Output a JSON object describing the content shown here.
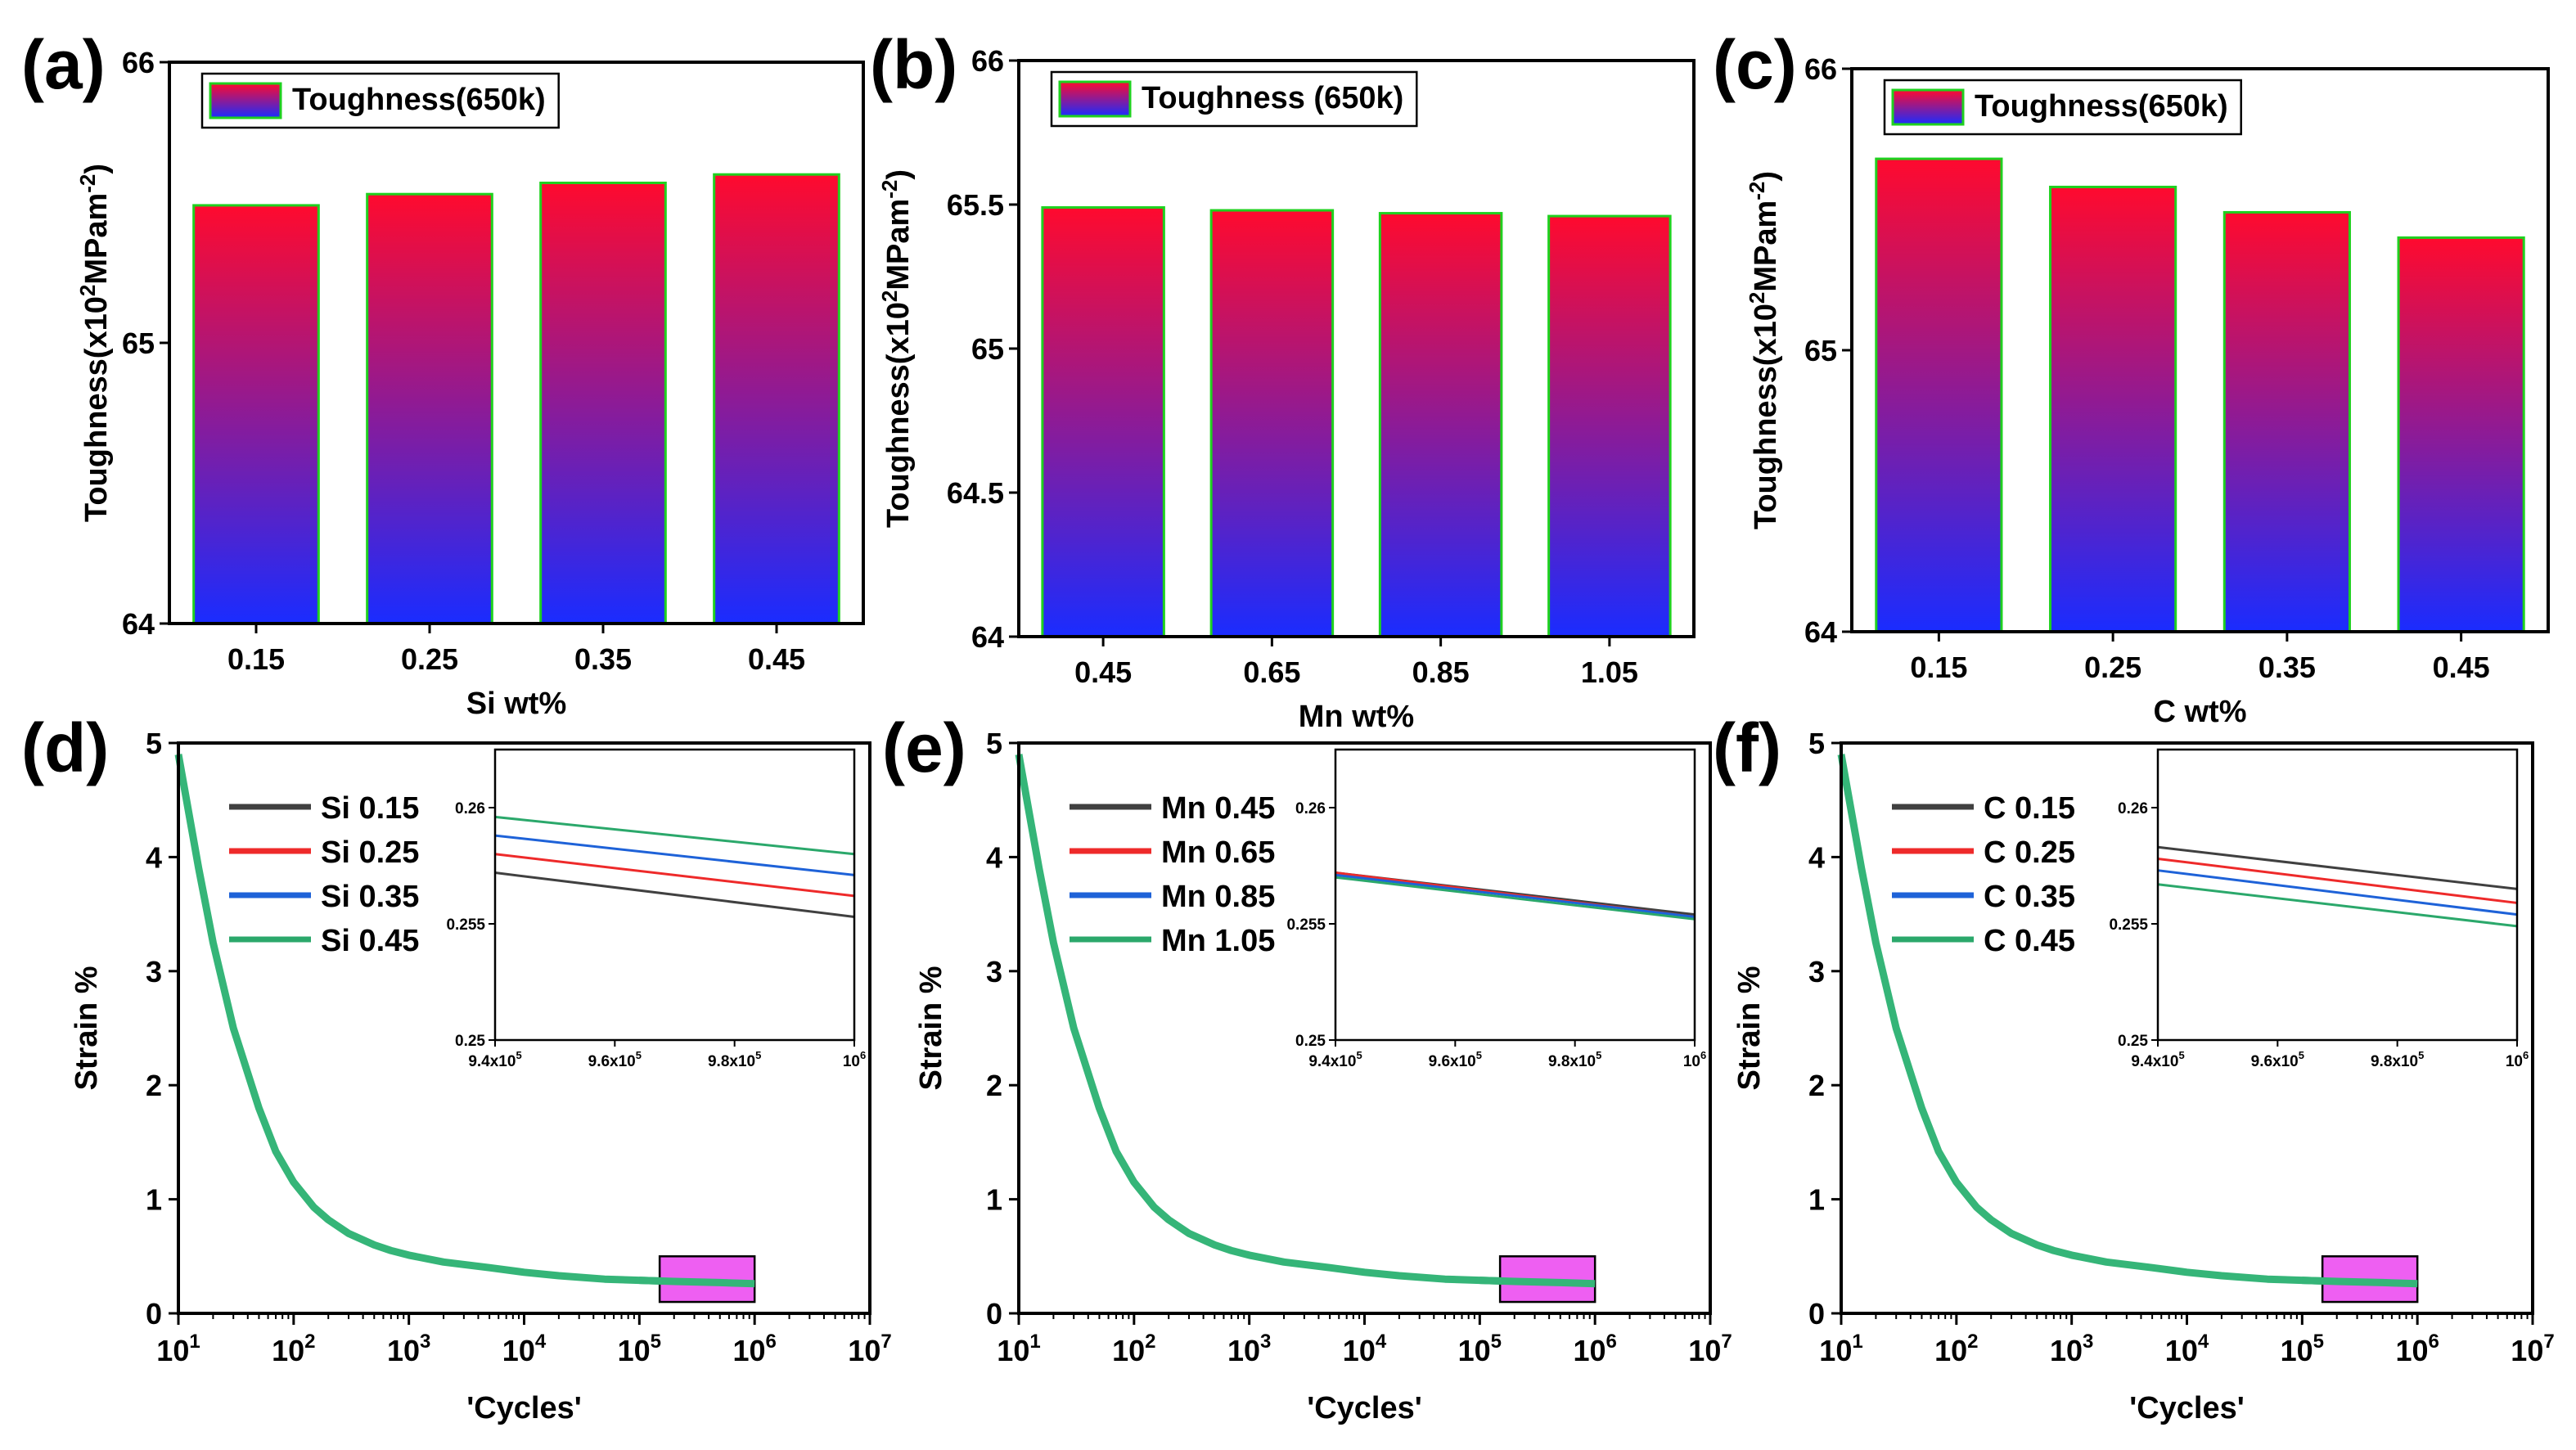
{
  "colors": {
    "bar_top": "#ff0a2e",
    "bar_bottom": "#1a2cff",
    "bar_stroke": "#1fd11f",
    "zoom_box": "#ee5ff2",
    "series": [
      "#404040",
      "#ee2a2a",
      "#1e62d8",
      "#2ba86b"
    ],
    "curve": "#35b578"
  },
  "chart_data": [
    {
      "id": "a",
      "panel_label": "(a)",
      "type": "bar",
      "categories": [
        "0.15",
        "0.25",
        "0.35",
        "0.45"
      ],
      "values": [
        65.49,
        65.53,
        65.57,
        65.6
      ],
      "ylim": [
        64,
        66
      ],
      "yticks": [
        "64",
        "65",
        "66"
      ],
      "ytick_values": [
        64,
        65,
        66
      ],
      "xlabel": "Si wt%",
      "ylabel": {
        "pre": "Toughness(x10",
        "sup1": "2",
        "mid": "MPam",
        "sup2": "-2",
        "post": ")"
      },
      "legend": "Toughness(650k)"
    },
    {
      "id": "b",
      "panel_label": "(b)",
      "type": "bar",
      "categories": [
        "0.45",
        "0.65",
        "0.85",
        "1.05"
      ],
      "values": [
        65.49,
        65.48,
        65.47,
        65.46
      ],
      "ylim": [
        64,
        66
      ],
      "yticks": [
        "64",
        "64.5",
        "65",
        "65.5",
        "66"
      ],
      "ytick_values": [
        64,
        64.5,
        65,
        65.5,
        66
      ],
      "xlabel": "Mn wt%",
      "ylabel": {
        "pre": "Toughness(x10",
        "sup1": "2",
        "mid": "MPam",
        "sup2": "-2",
        "post": ")"
      },
      "legend": "Toughness (650k)"
    },
    {
      "id": "c",
      "panel_label": "(c)",
      "type": "bar",
      "categories": [
        "0.15",
        "0.25",
        "0.35",
        "0.45"
      ],
      "values": [
        65.68,
        65.58,
        65.49,
        65.4
      ],
      "ylim": [
        64,
        66
      ],
      "yticks": [
        "64",
        "65",
        "66"
      ],
      "ytick_values": [
        64,
        65,
        66
      ],
      "xlabel": "C  wt%",
      "ylabel": {
        "pre": "Toughness(x10",
        "sup1": "2",
        "mid": "MPam",
        "sup2": "-2",
        "post": ")"
      },
      "legend": "Toughness(650k)"
    },
    {
      "id": "d",
      "panel_label": "(d)",
      "type": "line",
      "xlabel": "'Cycles'",
      "ylabel": "Strain %",
      "xscale": "log",
      "xlim_exp": [
        1,
        7
      ],
      "ylim": [
        0,
        5
      ],
      "xtick_exps": [
        "1",
        "2",
        "3",
        "4",
        "5",
        "6",
        "7"
      ],
      "yticks": [
        "0",
        "1",
        "2",
        "3",
        "4",
        "5"
      ],
      "curve": {
        "x": [
          10,
          15,
          20,
          30,
          50,
          70,
          100,
          150,
          200,
          300,
          500,
          700,
          1000,
          2000,
          5000,
          10000,
          20000,
          50000,
          100000,
          200000,
          500000,
          1000000
        ],
        "y": [
          4.9,
          3.9,
          3.25,
          2.5,
          1.8,
          1.42,
          1.15,
          0.93,
          0.82,
          0.7,
          0.6,
          0.55,
          0.51,
          0.45,
          0.4,
          0.36,
          0.33,
          0.3,
          0.29,
          0.28,
          0.27,
          0.26
        ]
      },
      "zoom_box": {
        "x0": 150000,
        "x1": 1000000,
        "y0": 0.1,
        "y1": 0.5
      },
      "series": [
        {
          "name": "Si 0.15",
          "start": 0.2572,
          "end": 0.2553
        },
        {
          "name": "Si 0.25",
          "start": 0.258,
          "end": 0.2562
        },
        {
          "name": "Si 0.35",
          "start": 0.2588,
          "end": 0.2571
        },
        {
          "name": "Si 0.45",
          "start": 0.2596,
          "end": 0.258
        }
      ],
      "inset": {
        "xlim": [
          9.4,
          10.0
        ],
        "ylim": [
          0.25,
          0.2625
        ],
        "xticks": [
          "9.4x10",
          "9.6x10",
          "9.8x10",
          "10"
        ],
        "xtick_sup": [
          "5",
          "5",
          "5",
          "6"
        ],
        "xtick_values": [
          9.4,
          9.6,
          9.8,
          10.0
        ],
        "yticks": [
          "0.25",
          "0.255",
          "0.26"
        ],
        "ytick_values": [
          0.25,
          0.255,
          0.26
        ]
      }
    },
    {
      "id": "e",
      "panel_label": "(e)",
      "type": "line",
      "xlabel": "'Cycles'",
      "ylabel": "Strain %",
      "xscale": "log",
      "xlim_exp": [
        1,
        7
      ],
      "ylim": [
        0,
        5
      ],
      "xtick_exps": [
        "1",
        "2",
        "3",
        "4",
        "5",
        "6",
        "7"
      ],
      "yticks": [
        "0",
        "1",
        "2",
        "3",
        "4",
        "5"
      ],
      "curve": {
        "x": [
          10,
          15,
          20,
          30,
          50,
          70,
          100,
          150,
          200,
          300,
          500,
          700,
          1000,
          2000,
          5000,
          10000,
          20000,
          50000,
          100000,
          200000,
          500000,
          1000000
        ],
        "y": [
          4.9,
          3.9,
          3.25,
          2.5,
          1.8,
          1.42,
          1.15,
          0.93,
          0.82,
          0.7,
          0.6,
          0.55,
          0.51,
          0.45,
          0.4,
          0.36,
          0.33,
          0.3,
          0.29,
          0.28,
          0.27,
          0.26
        ]
      },
      "zoom_box": {
        "x0": 150000,
        "x1": 1000000,
        "y0": 0.1,
        "y1": 0.5
      },
      "series": [
        {
          "name": "Mn 0.45",
          "start": 0.2572,
          "end": 0.2554
        },
        {
          "name": "Mn 0.65",
          "start": 0.2572,
          "end": 0.2553
        },
        {
          "name": "Mn 0.85",
          "start": 0.2571,
          "end": 0.2553
        },
        {
          "name": "Mn 1.05",
          "start": 0.257,
          "end": 0.2552
        }
      ],
      "inset": {
        "xlim": [
          9.4,
          10.0
        ],
        "ylim": [
          0.25,
          0.2625
        ],
        "xticks": [
          "9.4x10",
          "9.6x10",
          "9.8x10",
          "10"
        ],
        "xtick_sup": [
          "5",
          "5",
          "5",
          "6"
        ],
        "xtick_values": [
          9.4,
          9.6,
          9.8,
          10.0
        ],
        "yticks": [
          "0.25",
          "0.255",
          "0.26"
        ],
        "ytick_values": [
          0.25,
          0.255,
          0.26
        ]
      }
    },
    {
      "id": "f",
      "panel_label": "(f)",
      "type": "line",
      "xlabel": "'Cycles'",
      "ylabel": "Strain %",
      "xscale": "log",
      "xlim_exp": [
        1,
        7
      ],
      "ylim": [
        0,
        5
      ],
      "xtick_exps": [
        "1",
        "2",
        "3",
        "4",
        "5",
        "6",
        "7"
      ],
      "yticks": [
        "0",
        "1",
        "2",
        "3",
        "4",
        "5"
      ],
      "curve": {
        "x": [
          10,
          15,
          20,
          30,
          50,
          70,
          100,
          150,
          200,
          300,
          500,
          700,
          1000,
          2000,
          5000,
          10000,
          20000,
          50000,
          100000,
          200000,
          500000,
          1000000
        ],
        "y": [
          4.9,
          3.9,
          3.25,
          2.5,
          1.8,
          1.42,
          1.15,
          0.93,
          0.82,
          0.7,
          0.6,
          0.55,
          0.51,
          0.45,
          0.4,
          0.36,
          0.33,
          0.3,
          0.29,
          0.28,
          0.27,
          0.26
        ]
      },
      "zoom_box": {
        "x0": 150000,
        "x1": 1000000,
        "y0": 0.1,
        "y1": 0.5
      },
      "series": [
        {
          "name": "C 0.15",
          "start": 0.2583,
          "end": 0.2565
        },
        {
          "name": "C 0.25",
          "start": 0.2578,
          "end": 0.2559
        },
        {
          "name": "C 0.35",
          "start": 0.2573,
          "end": 0.2554
        },
        {
          "name": "C 0.45",
          "start": 0.2567,
          "end": 0.2549
        }
      ],
      "inset": {
        "xlim": [
          9.4,
          10.0
        ],
        "ylim": [
          0.25,
          0.2625
        ],
        "xticks": [
          "9.4x10",
          "9.6x10",
          "9.8x10",
          "10"
        ],
        "xtick_sup": [
          "5",
          "5",
          "5",
          "6"
        ],
        "xtick_values": [
          9.4,
          9.6,
          9.8,
          10.0
        ],
        "yticks": [
          "0.25",
          "0.255",
          "0.26"
        ],
        "ytick_values": [
          0.25,
          0.255,
          0.26
        ]
      }
    }
  ]
}
